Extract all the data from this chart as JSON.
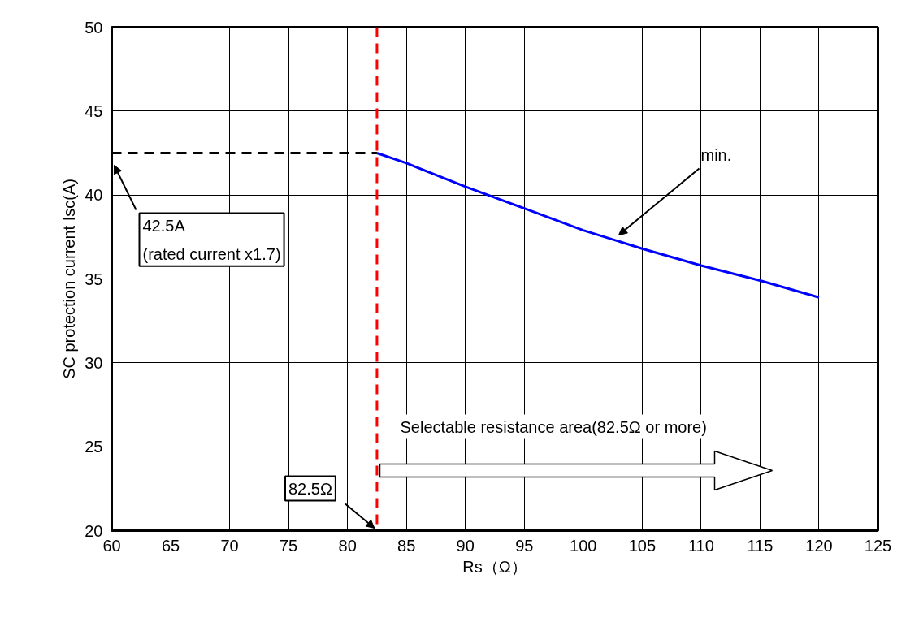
{
  "chart_data": {
    "type": "line",
    "xlabel": "Rs（Ω）",
    "ylabel": "SC protection current Isc(A)",
    "xlim": [
      60,
      125
    ],
    "ylim": [
      20,
      50
    ],
    "xticks": [
      60,
      65,
      70,
      75,
      80,
      85,
      90,
      95,
      100,
      105,
      110,
      115,
      120,
      125
    ],
    "yticks": [
      20,
      25,
      30,
      35,
      40,
      45,
      50
    ],
    "grid": true,
    "series": [
      {
        "color": "#0000ff",
        "line_style": "solid",
        "x": [
          82.5,
          85,
          90,
          95,
          100,
          105,
          110,
          115,
          120
        ],
        "values": [
          42.5,
          41.9,
          40.5,
          39.2,
          37.9,
          36.8,
          35.8,
          34.9,
          33.9
        ]
      },
      {
        "color": "#000000",
        "line_style": "dashed",
        "x": [
          60,
          82.5
        ],
        "values": [
          42.5,
          42.5
        ]
      }
    ],
    "ref_lines": [
      {
        "axis": "x",
        "value": 82.5,
        "color": "#ff0000",
        "line_style": "dashed"
      }
    ],
    "annotations": [
      "min.",
      "42.5A\n(rated current x1.7)",
      {
        "text": "82.5Ω",
        "x": 82.5,
        "y": 20
      },
      "Selectable resistance area(82.5Ω or more)"
    ]
  }
}
